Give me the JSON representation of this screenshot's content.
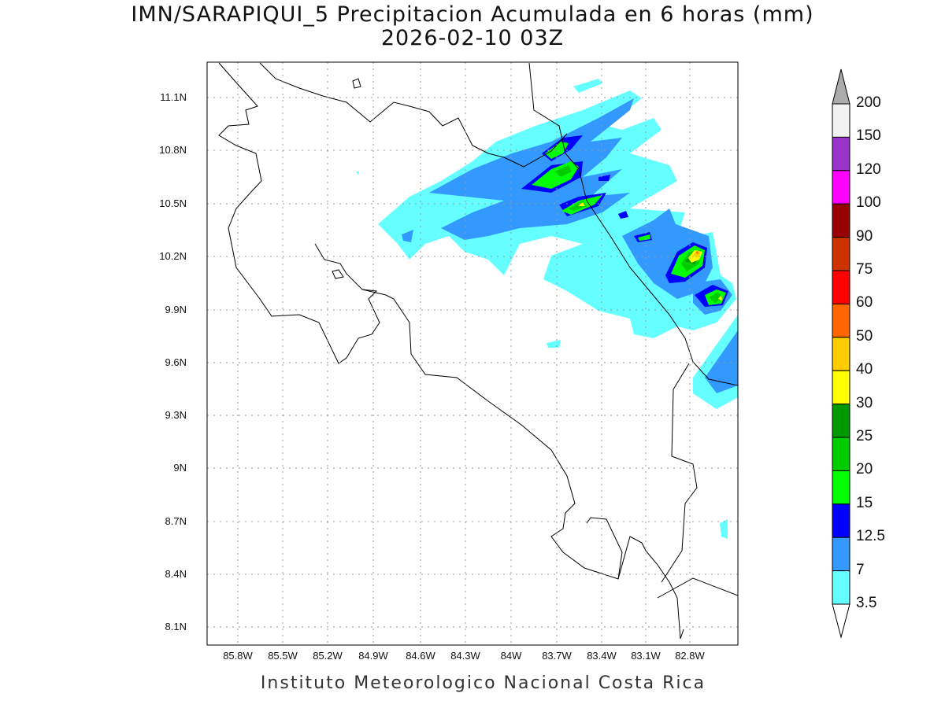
{
  "title": "IMN/SARAPIQUI_5 Precipitacion Acumulada en 6 horas (mm)",
  "subtitle": "2026-02-10 03Z",
  "footer": "Instituto Meteorologico Nacional Costa Rica",
  "map": {
    "lat_ticks": [
      "11.1N",
      "10.8N",
      "10.5N",
      "10.2N",
      "9.9N",
      "9.6N",
      "9.3N",
      "9N",
      "8.7N",
      "8.4N",
      "8.1N"
    ],
    "lon_ticks": [
      "85.8W",
      "85.5W",
      "85.2W",
      "84.9W",
      "84.6W",
      "84.3W",
      "84W",
      "83.7W",
      "83.4W",
      "83.1W",
      "82.8W"
    ]
  },
  "colorbar": {
    "labels": [
      "200",
      "150",
      "120",
      "100",
      "90",
      "75",
      "60",
      "50",
      "40",
      "30",
      "25",
      "20",
      "15",
      "12.5",
      "7",
      "3.5"
    ],
    "colors": [
      "#f2f2f2",
      "#9933cc",
      "#ff00ff",
      "#990000",
      "#cc3300",
      "#ff0000",
      "#ff6600",
      "#ffcc00",
      "#ffff00",
      "#009900",
      "#00cc00",
      "#00ff00",
      "#0000ff",
      "#3399ff",
      "#66ffff"
    ],
    "over_color": "#aaaaaa",
    "under_color": "#ffffff"
  }
}
